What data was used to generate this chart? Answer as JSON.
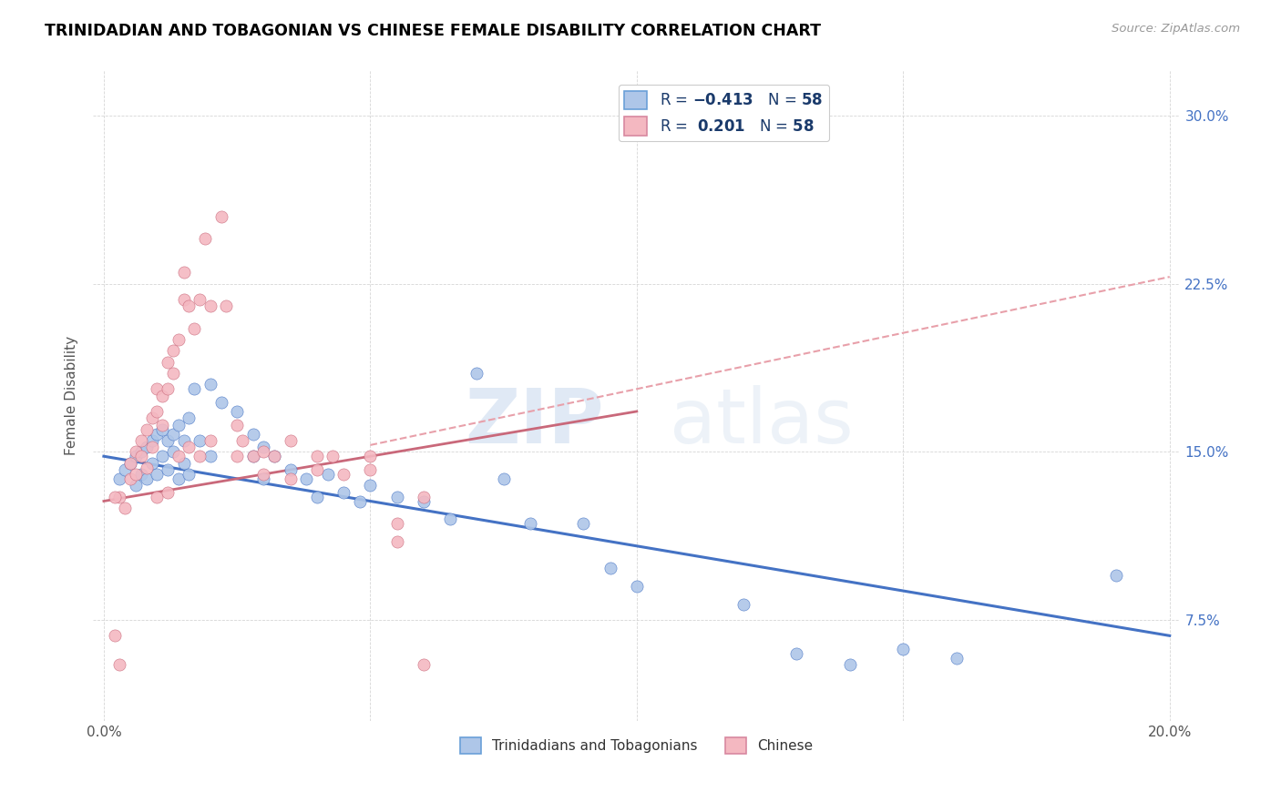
{
  "title": "TRINIDADIAN AND TOBAGONIAN VS CHINESE FEMALE DISABILITY CORRELATION CHART",
  "source": "Source: ZipAtlas.com",
  "ylabel": "Female Disability",
  "x_min": 0.0,
  "x_max": 0.2,
  "y_min": 0.03,
  "y_max": 0.32,
  "x_ticks": [
    0.0,
    0.05,
    0.1,
    0.15,
    0.2
  ],
  "x_tick_labels": [
    "0.0%",
    "",
    "",
    "",
    "20.0%"
  ],
  "y_ticks": [
    0.075,
    0.15,
    0.225,
    0.3
  ],
  "y_tick_labels": [
    "7.5%",
    "15.0%",
    "22.5%",
    "30.0%"
  ],
  "legend_labels": [
    "Trinidadians and Tobagonians",
    "Chinese"
  ],
  "blue_color": "#aec6e8",
  "pink_color": "#f4b8c1",
  "blue_line_color": "#4472c4",
  "pink_line_color": "#c9687a",
  "pink_dash_color": "#e8a0aa",
  "R_blue": -0.413,
  "N_blue": 58,
  "R_pink": 0.201,
  "N_pink": 58,
  "blue_scatter": [
    [
      0.003,
      0.138
    ],
    [
      0.004,
      0.142
    ],
    [
      0.005,
      0.145
    ],
    [
      0.006,
      0.148
    ],
    [
      0.006,
      0.135
    ],
    [
      0.007,
      0.15
    ],
    [
      0.007,
      0.14
    ],
    [
      0.008,
      0.152
    ],
    [
      0.008,
      0.138
    ],
    [
      0.009,
      0.155
    ],
    [
      0.009,
      0.145
    ],
    [
      0.01,
      0.158
    ],
    [
      0.01,
      0.14
    ],
    [
      0.011,
      0.16
    ],
    [
      0.011,
      0.148
    ],
    [
      0.012,
      0.155
    ],
    [
      0.012,
      0.142
    ],
    [
      0.013,
      0.158
    ],
    [
      0.013,
      0.15
    ],
    [
      0.014,
      0.162
    ],
    [
      0.014,
      0.138
    ],
    [
      0.015,
      0.155
    ],
    [
      0.015,
      0.145
    ],
    [
      0.016,
      0.165
    ],
    [
      0.016,
      0.14
    ],
    [
      0.017,
      0.178
    ],
    [
      0.018,
      0.155
    ],
    [
      0.02,
      0.18
    ],
    [
      0.02,
      0.148
    ],
    [
      0.022,
      0.172
    ],
    [
      0.025,
      0.168
    ],
    [
      0.028,
      0.158
    ],
    [
      0.028,
      0.148
    ],
    [
      0.03,
      0.152
    ],
    [
      0.03,
      0.138
    ],
    [
      0.032,
      0.148
    ],
    [
      0.035,
      0.142
    ],
    [
      0.038,
      0.138
    ],
    [
      0.04,
      0.13
    ],
    [
      0.042,
      0.14
    ],
    [
      0.045,
      0.132
    ],
    [
      0.048,
      0.128
    ],
    [
      0.05,
      0.135
    ],
    [
      0.055,
      0.13
    ],
    [
      0.06,
      0.128
    ],
    [
      0.065,
      0.12
    ],
    [
      0.07,
      0.185
    ],
    [
      0.075,
      0.138
    ],
    [
      0.08,
      0.118
    ],
    [
      0.09,
      0.118
    ],
    [
      0.095,
      0.098
    ],
    [
      0.1,
      0.09
    ],
    [
      0.12,
      0.082
    ],
    [
      0.13,
      0.06
    ],
    [
      0.14,
      0.055
    ],
    [
      0.15,
      0.062
    ],
    [
      0.16,
      0.058
    ],
    [
      0.19,
      0.095
    ]
  ],
  "pink_scatter": [
    [
      0.002,
      0.068
    ],
    [
      0.003,
      0.13
    ],
    [
      0.004,
      0.125
    ],
    [
      0.005,
      0.145
    ],
    [
      0.005,
      0.138
    ],
    [
      0.006,
      0.15
    ],
    [
      0.006,
      0.14
    ],
    [
      0.007,
      0.148
    ],
    [
      0.007,
      0.155
    ],
    [
      0.008,
      0.16
    ],
    [
      0.008,
      0.143
    ],
    [
      0.009,
      0.165
    ],
    [
      0.009,
      0.152
    ],
    [
      0.01,
      0.168
    ],
    [
      0.01,
      0.178
    ],
    [
      0.011,
      0.175
    ],
    [
      0.011,
      0.162
    ],
    [
      0.012,
      0.178
    ],
    [
      0.012,
      0.19
    ],
    [
      0.013,
      0.195
    ],
    [
      0.013,
      0.185
    ],
    [
      0.014,
      0.2
    ],
    [
      0.015,
      0.23
    ],
    [
      0.015,
      0.218
    ],
    [
      0.016,
      0.215
    ],
    [
      0.017,
      0.205
    ],
    [
      0.018,
      0.218
    ],
    [
      0.019,
      0.245
    ],
    [
      0.02,
      0.215
    ],
    [
      0.022,
      0.255
    ],
    [
      0.023,
      0.215
    ],
    [
      0.025,
      0.162
    ],
    [
      0.026,
      0.155
    ],
    [
      0.028,
      0.148
    ],
    [
      0.03,
      0.15
    ],
    [
      0.032,
      0.148
    ],
    [
      0.035,
      0.155
    ],
    [
      0.04,
      0.148
    ],
    [
      0.043,
      0.148
    ],
    [
      0.05,
      0.148
    ],
    [
      0.055,
      0.11
    ],
    [
      0.06,
      0.13
    ],
    [
      0.06,
      0.055
    ],
    [
      0.003,
      0.055
    ],
    [
      0.01,
      0.13
    ],
    [
      0.012,
      0.132
    ],
    [
      0.014,
      0.148
    ],
    [
      0.016,
      0.152
    ],
    [
      0.018,
      0.148
    ],
    [
      0.02,
      0.155
    ],
    [
      0.025,
      0.148
    ],
    [
      0.03,
      0.14
    ],
    [
      0.035,
      0.138
    ],
    [
      0.04,
      0.142
    ],
    [
      0.045,
      0.14
    ],
    [
      0.05,
      0.142
    ],
    [
      0.055,
      0.118
    ],
    [
      0.002,
      0.13
    ]
  ]
}
